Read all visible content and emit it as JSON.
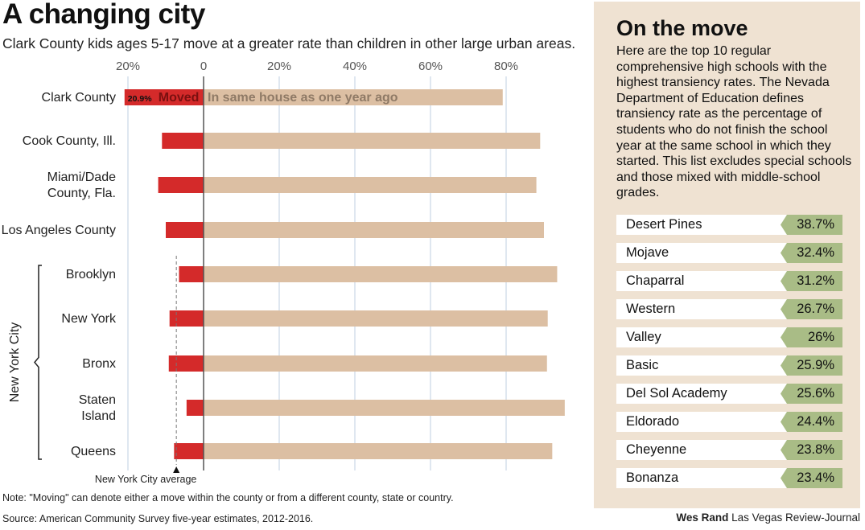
{
  "header": {
    "title": "A changing city",
    "subtitle": "Clark County kids ages 5-17 move at a greater rate than children in other large urban areas."
  },
  "chart_data": {
    "type": "bar",
    "orientation": "horizontal-diverging",
    "x_ticks": [
      "20%",
      "0",
      "20%",
      "40%",
      "60%",
      "80%"
    ],
    "xlim": [
      -20,
      100
    ],
    "grid": true,
    "categories": [
      "Clark County",
      "Cook County, Ill.",
      "Miami/Dade County, Fla.",
      "Los Angeles County",
      "Brooklyn",
      "New York",
      "Bronx",
      "Staten Island",
      "Queens"
    ],
    "category_lines": [
      [
        "Clark County"
      ],
      [
        "Cook County, Ill."
      ],
      [
        "Miami/Dade",
        "County, Fla."
      ],
      [
        "Los Angeles County"
      ],
      [
        "Brooklyn"
      ],
      [
        "New York"
      ],
      [
        "Bronx"
      ],
      [
        "Staten",
        "Island"
      ],
      [
        "Queens"
      ]
    ],
    "series": [
      {
        "name": "Moved",
        "color": "#d42a2a",
        "values": [
          20.9,
          11.0,
          12.0,
          10.0,
          6.5,
          9.0,
          9.2,
          4.5,
          7.8
        ]
      },
      {
        "name": "In same house as one year ago",
        "color": "#dcbfa3",
        "values": [
          79.1,
          89.0,
          88.0,
          90.0,
          93.5,
          91.0,
          90.8,
          95.5,
          92.2
        ]
      }
    ],
    "data_labels": {
      "moved_value": "20.9%",
      "moved_label": "Moved",
      "same_label": "In same house as one year ago"
    },
    "group": {
      "label": "New York City",
      "members": [
        "Brooklyn",
        "New York",
        "Bronx",
        "Staten Island",
        "Queens"
      ]
    },
    "reference_line": {
      "label": "New York City average",
      "value": -7.2
    }
  },
  "footer": {
    "note": "Note: \"Moving\" can denote either a move within the county or from a different county, state or country.",
    "source": "Source: American Community Survey five-year estimates, 2012-2016.",
    "author": "Wes Rand",
    "publication": "Las Vegas Review-Journal"
  },
  "panel": {
    "title": "On the move",
    "intro": "Here are the top 10 regular comprehensive high schools with the highest transiency rates. The Nevada Department of Education defines transiency rate as the percentage of students who do not finish the school year at the same school in which they started. This list excludes special schools and those mixed with middle-school grades.",
    "bar_color": "#a9bc86",
    "schools": [
      {
        "name": "Desert Pines",
        "rate": "38.7%"
      },
      {
        "name": "Mojave",
        "rate": "32.4%"
      },
      {
        "name": "Chaparral",
        "rate": "31.2%"
      },
      {
        "name": "Western",
        "rate": "26.7%"
      },
      {
        "name": "Valley",
        "rate": "26%"
      },
      {
        "name": "Basic",
        "rate": "25.9%"
      },
      {
        "name": "Del Sol Academy",
        "rate": "25.6%"
      },
      {
        "name": "Eldorado",
        "rate": "24.4%"
      },
      {
        "name": "Cheyenne",
        "rate": "23.8%"
      },
      {
        "name": "Bonanza",
        "rate": "23.4%"
      }
    ]
  }
}
